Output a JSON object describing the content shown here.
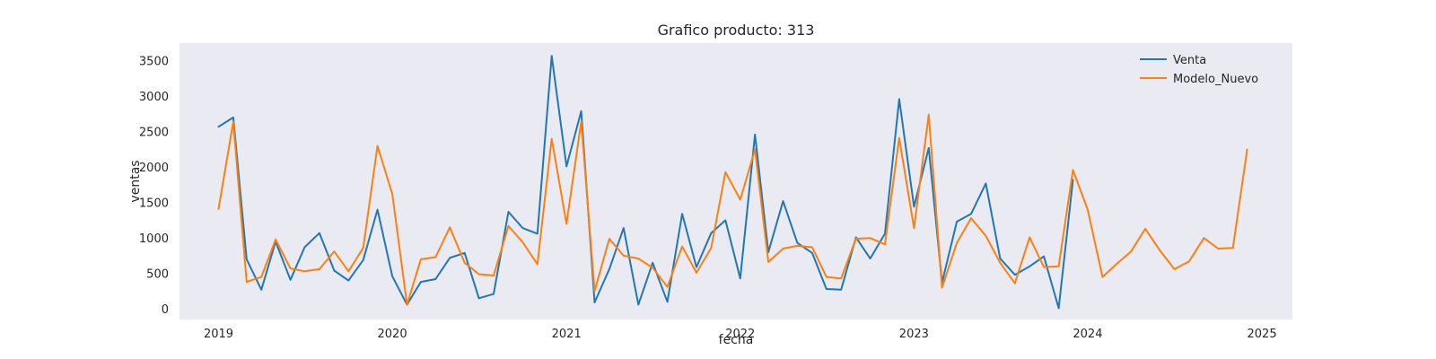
{
  "chart_data": {
    "type": "line",
    "title": "Grafico producto: 313",
    "xlabel": "fecha",
    "ylabel": "ventas",
    "x_tick_labels": [
      "2019",
      "2020",
      "2021",
      "2022",
      "2023",
      "2024",
      "2025"
    ],
    "y_ticks": [
      0,
      500,
      1000,
      1500,
      2000,
      2500,
      3000,
      3500
    ],
    "y_tick_labels": [
      "0",
      "500",
      "1000",
      "1500",
      "2000",
      "2500",
      "3000",
      "3500"
    ],
    "xlim": [
      "2018-10-11",
      "2025-03-06"
    ],
    "ylim": [
      -150,
      3750
    ],
    "grid": false,
    "background": "#eaeaf2",
    "legend_position": "upper right",
    "series": [
      {
        "name": "Venta",
        "color": "#1f77b4",
        "x": [
          "2019-01-01",
          "2019-02-01",
          "2019-03-01",
          "2019-04-01",
          "2019-05-01",
          "2019-06-01",
          "2019-07-01",
          "2019-08-01",
          "2019-09-01",
          "2019-10-01",
          "2019-11-01",
          "2019-12-01",
          "2020-01-01",
          "2020-02-01",
          "2020-03-01",
          "2020-04-01",
          "2020-05-01",
          "2020-06-01",
          "2020-07-01",
          "2020-08-01",
          "2020-09-01",
          "2020-10-01",
          "2020-11-01",
          "2020-12-01",
          "2021-01-01",
          "2021-02-01",
          "2021-03-01",
          "2021-04-01",
          "2021-05-01",
          "2021-06-01",
          "2021-07-01",
          "2021-08-01",
          "2021-09-01",
          "2021-10-01",
          "2021-11-01",
          "2021-12-01",
          "2022-01-01",
          "2022-02-01",
          "2022-03-01",
          "2022-04-01",
          "2022-05-01",
          "2022-06-01",
          "2022-07-01",
          "2022-08-01",
          "2022-09-01",
          "2022-10-01",
          "2022-11-01",
          "2022-12-01",
          "2023-01-01",
          "2023-02-01",
          "2023-03-01",
          "2023-04-01",
          "2023-05-01",
          "2023-06-01",
          "2023-07-01",
          "2023-08-01",
          "2023-09-01",
          "2023-10-01",
          "2023-11-01",
          "2023-12-01"
        ],
        "values": [
          2570,
          2700,
          700,
          270,
          950,
          410,
          870,
          1070,
          540,
          400,
          690,
          1400,
          460,
          60,
          380,
          420,
          720,
          790,
          150,
          210,
          1370,
          1140,
          1060,
          3570,
          2010,
          2790,
          90,
          560,
          1140,
          60,
          650,
          100,
          1340,
          590,
          1070,
          1250,
          430,
          2460,
          800,
          1520,
          930,
          790,
          280,
          270,
          1010,
          710,
          1060,
          2960,
          1440,
          2270,
          370,
          1230,
          1340,
          1770,
          710,
          480,
          600,
          740,
          10,
          1820
        ]
      },
      {
        "name": "Modelo_Nuevo",
        "color": "#ff7f0e",
        "x": [
          "2019-01-01",
          "2019-02-01",
          "2019-03-01",
          "2019-04-01",
          "2019-05-01",
          "2019-06-01",
          "2019-07-01",
          "2019-08-01",
          "2019-09-01",
          "2019-10-01",
          "2019-11-01",
          "2019-12-01",
          "2020-01-01",
          "2020-02-01",
          "2020-03-01",
          "2020-04-01",
          "2020-05-01",
          "2020-06-01",
          "2020-07-01",
          "2020-08-01",
          "2020-09-01",
          "2020-10-01",
          "2020-11-01",
          "2020-12-01",
          "2021-01-01",
          "2021-02-01",
          "2021-03-01",
          "2021-04-01",
          "2021-05-01",
          "2021-06-01",
          "2021-07-01",
          "2021-08-01",
          "2021-09-01",
          "2021-10-01",
          "2021-11-01",
          "2021-12-01",
          "2022-01-01",
          "2022-02-01",
          "2022-03-01",
          "2022-04-01",
          "2022-05-01",
          "2022-06-01",
          "2022-07-01",
          "2022-08-01",
          "2022-09-01",
          "2022-10-01",
          "2022-11-01",
          "2022-12-01",
          "2023-01-01",
          "2023-02-01",
          "2023-03-01",
          "2023-04-01",
          "2023-05-01",
          "2023-06-01",
          "2023-07-01",
          "2023-08-01",
          "2023-09-01",
          "2023-10-01",
          "2023-11-01",
          "2023-12-01",
          "2024-01-01",
          "2024-02-01",
          "2024-03-01",
          "2024-04-01",
          "2024-05-01",
          "2024-06-01",
          "2024-07-01",
          "2024-08-01",
          "2024-09-01",
          "2024-10-01",
          "2024-11-01",
          "2024-12-01"
        ],
        "values": [
          1410,
          2640,
          380,
          450,
          980,
          570,
          530,
          560,
          810,
          530,
          860,
          2300,
          1620,
          60,
          700,
          730,
          1150,
          650,
          490,
          470,
          1170,
          940,
          630,
          2400,
          1200,
          2640,
          250,
          990,
          750,
          710,
          580,
          310,
          880,
          510,
          860,
          1930,
          1540,
          2250,
          660,
          850,
          890,
          870,
          450,
          430,
          990,
          1000,
          910,
          2410,
          1140,
          2740,
          300,
          930,
          1280,
          1030,
          650,
          360,
          1010,
          590,
          600,
          1960,
          1400,
          450,
          630,
          810,
          1130,
          820,
          560,
          670,
          1000,
          850,
          860,
          2250
        ]
      }
    ]
  }
}
